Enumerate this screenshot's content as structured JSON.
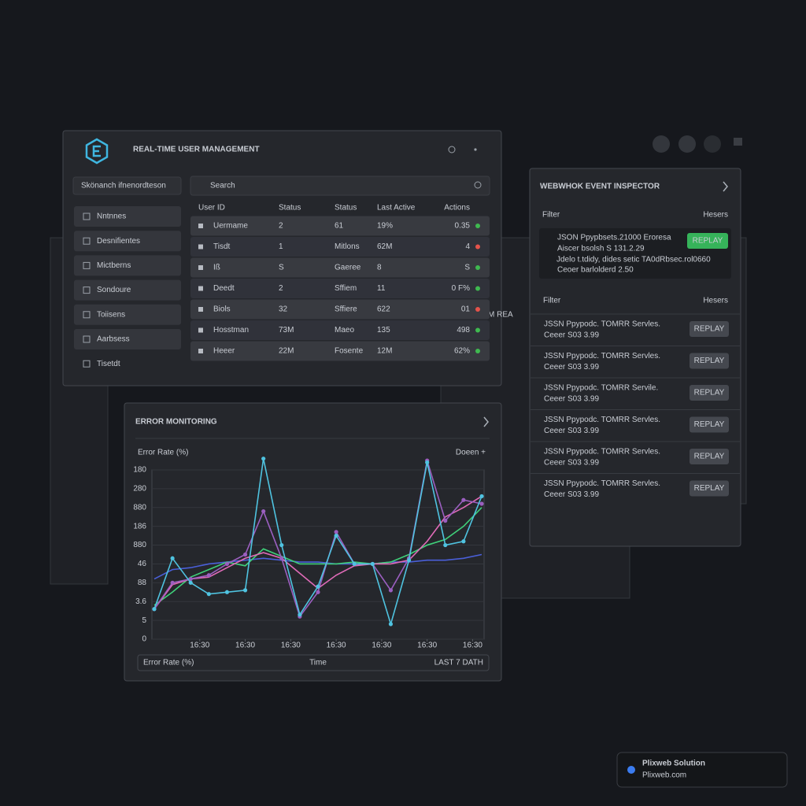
{
  "user_panel": {
    "title": "REAL-TIME USER MANAGEMENT",
    "sidebar_search": "Skönanch ifnenordteson",
    "nav": [
      "Nntnnes",
      "Desnifientes",
      "Mictberns",
      "Sondoure",
      "Toiisens",
      "Aarbsess",
      "Tisetdt"
    ],
    "search": "Search",
    "columns": [
      "User ID",
      "Status",
      "Status",
      "Last Active",
      "Actions"
    ],
    "rows": [
      {
        "cells": [
          "Uermame",
          "2",
          "61",
          "19%",
          "0.35"
        ],
        "dot": "#3fb950"
      },
      {
        "cells": [
          "Tisdt",
          "1",
          "Mitlons",
          "62M",
          "4"
        ],
        "dot": "#e5534b"
      },
      {
        "cells": [
          "Iß",
          "S",
          "Gaeree",
          "8",
          "S"
        ],
        "dot": "#3fb950"
      },
      {
        "cells": [
          "Deedt",
          "2",
          "Sffiem",
          "11",
          "0 F%"
        ],
        "dot": "#3fb950"
      },
      {
        "cells": [
          "Biols",
          "32",
          "Sffiere",
          "622",
          "01"
        ],
        "dot": "#e5534b"
      },
      {
        "cells": [
          "Hosstman",
          "73M",
          "Maeo",
          "135",
          "498"
        ],
        "dot": "#3fb950"
      },
      {
        "cells": [
          "Heeer",
          "22M",
          "Fosente",
          "12M",
          "62%"
        ],
        "dot": "#3fb950"
      }
    ]
  },
  "webhook_panel": {
    "title": "WEBWHOK EVENT INSPECTOR",
    "filter": "Filter",
    "headers": "Hesers",
    "selected": {
      "lines": [
        "JSON Ppypbsets.21000 Eroresa",
        "Aiscer bsolsh S 131.2.29",
        "Jdelo t.tdidy, dides setic TA0dRbsec.rol0660",
        "Ceoer barlolderd 2.50"
      ],
      "button": "REPLAY"
    },
    "filter2": "Filter",
    "headers2": "Hesers",
    "events": [
      {
        "title": "JSSN Ppypodc. TOMRR Servles.",
        "sub": "Ceeer S03 3.99",
        "button": "REPLAY"
      },
      {
        "title": "JSSN Ppypodc. TOMRR Servles.",
        "sub": "Ceeer S03 3.99",
        "button": "REPLAY"
      },
      {
        "title": "JSSN Ppypodc. TOMRR Servile.",
        "sub": "Ceeer S03 3.99",
        "button": "REPLAY"
      },
      {
        "title": "JSSN Ppypodc. TOMRR Servles.",
        "sub": "Ceeer S03 3.99",
        "button": "REPLAY"
      },
      {
        "title": "JSSN Ppypodc. TOMRR Servles.",
        "sub": "Ceeer S03 3.99",
        "button": "REPLAY"
      },
      {
        "title": "JSSN Ppypodc. TOMRR Servles.",
        "sub": "Ceeer S03 3.99",
        "button": "REPLAY"
      }
    ]
  },
  "error_panel": {
    "title": "ERROR MONITORING",
    "legend": "Doeen +",
    "footer": [
      "Error Rate (%)",
      "Time",
      "LAST 7 DATH"
    ]
  },
  "chart_data": {
    "type": "line",
    "y_label": "Error Rate (%)",
    "x": [
      0,
      1,
      2,
      3,
      4,
      5,
      6,
      7,
      8,
      9,
      10,
      11,
      12,
      13,
      14,
      15,
      16,
      17,
      18
    ],
    "xlim": [
      0,
      18
    ],
    "xticks": [
      {
        "value": 2.5,
        "label": "16:30"
      },
      {
        "value": 5,
        "label": "16:30"
      },
      {
        "value": 7.5,
        "label": "16:30"
      },
      {
        "value": 10,
        "label": "16:30"
      },
      {
        "value": 12.5,
        "label": "16:30"
      },
      {
        "value": 15,
        "label": "16:30"
      },
      {
        "value": 17.5,
        "label": "16:30"
      }
    ],
    "ylim": [
      0,
      9
    ],
    "yticks": [
      0,
      {
        "value": 1,
        "label": "5"
      },
      {
        "value": 2,
        "label": "3.6"
      },
      {
        "value": 3,
        "label": "88"
      },
      {
        "value": 4,
        "label": "46"
      },
      {
        "value": 5,
        "label": "880"
      },
      {
        "value": 6,
        "label": "186"
      },
      {
        "value": 7,
        "label": "880"
      },
      {
        "value": 8,
        "label": "280"
      },
      {
        "value": 9,
        "label": "180"
      }
    ],
    "grid": true,
    "series": [
      {
        "color": "#4a5fd8",
        "values": [
          3.2,
          3.7,
          3.8,
          4.0,
          4.1,
          4.2,
          4.3,
          4.2,
          4.1,
          4.1,
          4.0,
          4.0,
          4.0,
          4.1,
          4.1,
          4.2,
          4.2,
          4.3,
          4.5
        ]
      },
      {
        "color": "#3fd07a",
        "values": [
          1.8,
          2.5,
          3.3,
          3.7,
          4.1,
          3.9,
          4.8,
          4.4,
          4.0,
          4.0,
          4.0,
          4.1,
          4.0,
          4.1,
          4.5,
          5.0,
          5.3,
          6.0,
          7.0
        ]
      },
      {
        "color": "#e06bb8",
        "values": [
          1.6,
          2.9,
          3.2,
          3.3,
          3.8,
          4.3,
          4.6,
          4.3,
          3.5,
          2.7,
          3.4,
          3.9,
          4.0,
          4.0,
          4.2,
          5.2,
          6.5,
          7.0,
          7.6
        ]
      },
      {
        "color": "#9b5fc0",
        "values": [
          1.6,
          3.0,
          3.2,
          3.4,
          4.0,
          4.5,
          6.8,
          4.3,
          1.2,
          2.5,
          5.7,
          4.0,
          4.0,
          2.6,
          4.3,
          9.5,
          6.3,
          7.4,
          7.2
        ]
      },
      {
        "color": "#4fc3e0",
        "values": [
          1.6,
          4.3,
          3.0,
          2.4,
          2.5,
          2.6,
          9.6,
          5.0,
          1.3,
          2.8,
          5.5,
          4.0,
          4.0,
          0.8,
          4.2,
          9.4,
          5.0,
          5.2,
          7.6
        ]
      }
    ]
  },
  "background": [
    "M REA"
  ],
  "badge": {
    "name": "Plixweb Solution",
    "url": "Plixweb.com"
  }
}
